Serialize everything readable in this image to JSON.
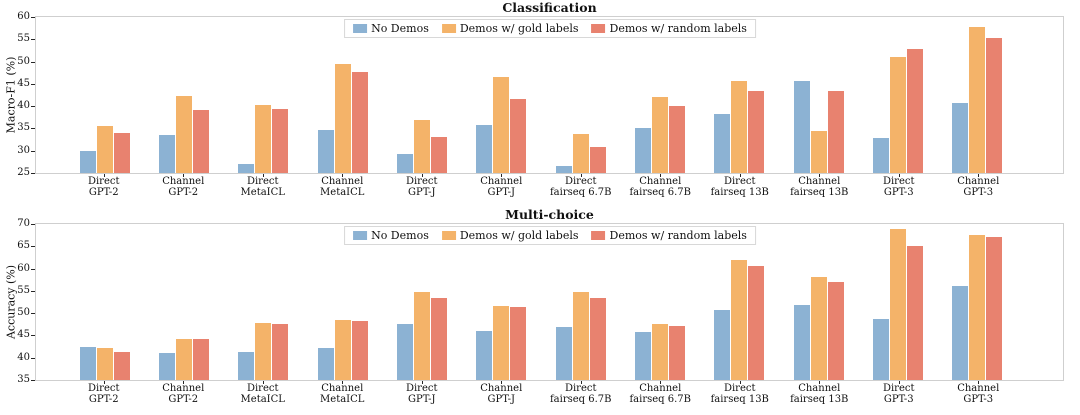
{
  "figure": {
    "background": "#ffffff",
    "text_color": "#111111",
    "axis_border_color": "#cfcfcf"
  },
  "chart_data": [
    {
      "type": "bar",
      "title": "Classification",
      "xlabel": "",
      "ylabel": "Macro-F1 (%)",
      "ylim": [
        25,
        60
      ],
      "yticks": [
        25,
        30,
        35,
        40,
        45,
        50,
        55,
        60
      ],
      "grid": false,
      "legend_position": "upper center inside",
      "categories": [
        [
          "Direct",
          "GPT-2"
        ],
        [
          "Channel",
          "GPT-2"
        ],
        [
          "Direct",
          "MetaICL"
        ],
        [
          "Channel",
          "MetaICL"
        ],
        [
          "Direct",
          "GPT-J"
        ],
        [
          "Channel",
          "GPT-J"
        ],
        [
          "Direct",
          "fairseq 6.7B"
        ],
        [
          "Channel",
          "fairseq 6.7B"
        ],
        [
          "Direct",
          "fairseq 13B"
        ],
        [
          "Channel",
          "fairseq 13B"
        ],
        [
          "Direct",
          "GPT-3"
        ],
        [
          "Channel",
          "GPT-3"
        ]
      ],
      "series": [
        {
          "name": "No Demos",
          "color": "#8CB2D3",
          "values": [
            30.0,
            33.6,
            27.0,
            34.7,
            29.2,
            35.7,
            26.5,
            35.0,
            38.3,
            45.7,
            32.9,
            40.8
          ]
        },
        {
          "name": "Demos w/ gold labels",
          "color": "#F4B369",
          "values": [
            35.5,
            42.3,
            40.3,
            49.5,
            36.9,
            46.6,
            33.8,
            42.1,
            45.6,
            34.4,
            51.0,
            57.8
          ]
        },
        {
          "name": "Demos w/ random labels",
          "color": "#E8826F",
          "values": [
            33.9,
            39.2,
            39.3,
            47.7,
            33.2,
            41.7,
            30.8,
            40.0,
            43.4,
            43.5,
            52.8,
            55.3
          ]
        }
      ]
    },
    {
      "type": "bar",
      "title": "Multi-choice",
      "xlabel": "",
      "ylabel": "Accuracy (%)",
      "ylim": [
        35,
        70
      ],
      "yticks": [
        35,
        40,
        45,
        50,
        55,
        60,
        65,
        70
      ],
      "grid": false,
      "legend_position": "upper center inside",
      "categories": [
        [
          "Direct",
          "GPT-2"
        ],
        [
          "Channel",
          "GPT-2"
        ],
        [
          "Direct",
          "MetaICL"
        ],
        [
          "Channel",
          "MetaICL"
        ],
        [
          "Direct",
          "GPT-J"
        ],
        [
          "Channel",
          "GPT-J"
        ],
        [
          "Direct",
          "fairseq 6.7B"
        ],
        [
          "Channel",
          "fairseq 6.7B"
        ],
        [
          "Direct",
          "fairseq 13B"
        ],
        [
          "Channel",
          "fairseq 13B"
        ],
        [
          "Direct",
          "GPT-3"
        ],
        [
          "Channel",
          "GPT-3"
        ]
      ],
      "series": [
        {
          "name": "No Demos",
          "color": "#8CB2D3",
          "values": [
            42.4,
            41.1,
            41.2,
            42.2,
            47.5,
            46.0,
            46.8,
            45.7,
            50.7,
            51.8,
            48.8,
            56.2
          ]
        },
        {
          "name": "Demos w/ gold labels",
          "color": "#F4B369",
          "values": [
            42.3,
            44.3,
            47.9,
            48.4,
            54.8,
            51.6,
            54.7,
            47.6,
            62.0,
            58.1,
            68.8,
            67.5
          ]
        },
        {
          "name": "Demos w/ random labels",
          "color": "#E8826F",
          "values": [
            41.4,
            44.3,
            47.6,
            48.3,
            53.4,
            51.3,
            53.3,
            47.1,
            60.5,
            57.1,
            65.1,
            67.0
          ]
        }
      ]
    }
  ]
}
